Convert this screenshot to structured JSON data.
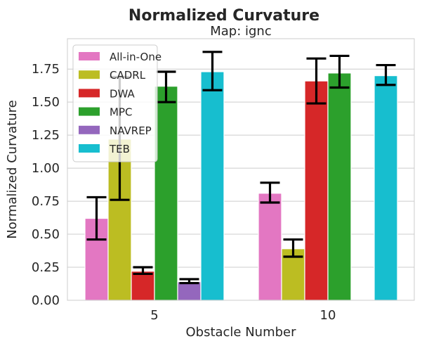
{
  "chart_data": {
    "type": "bar",
    "title": "Normalized Curvature",
    "subtitle": "Map: ignc",
    "xlabel": "Obstacle Number",
    "ylabel": "Normalized Curvature",
    "categories": [
      "5",
      "10"
    ],
    "ylim": [
      0,
      1.98
    ],
    "yticks": [
      "0.00",
      "0.25",
      "0.50",
      "0.75",
      "1.00",
      "1.25",
      "1.50",
      "1.75"
    ],
    "grid": true,
    "legend_position": "top-left",
    "series": [
      {
        "name": "All-in-One",
        "color": "#e377c2",
        "values": [
          0.62,
          0.81
        ],
        "err_low": [
          0.46,
          0.74
        ],
        "err_high": [
          0.78,
          0.89
        ]
      },
      {
        "name": "CADRL",
        "color": "#bcbd22",
        "values": [
          1.22,
          0.39
        ],
        "err_low": [
          0.76,
          0.33
        ],
        "err_high": [
          1.69,
          0.46
        ]
      },
      {
        "name": "DWA",
        "color": "#d62728",
        "values": [
          0.22,
          1.66
        ],
        "err_low": [
          0.2,
          1.49
        ],
        "err_high": [
          0.25,
          1.83
        ]
      },
      {
        "name": "MPC",
        "color": "#2ca02c",
        "values": [
          1.62,
          1.72
        ],
        "err_low": [
          1.5,
          1.61
        ],
        "err_high": [
          1.73,
          1.85
        ]
      },
      {
        "name": "NAVREP",
        "color": "#9467bd",
        "values": [
          0.14,
          null
        ],
        "err_low": [
          0.13,
          null
        ],
        "err_high": [
          0.16,
          null
        ]
      },
      {
        "name": "TEB",
        "color": "#17becf",
        "values": [
          1.73,
          1.7
        ],
        "err_low": [
          1.59,
          1.63
        ],
        "err_high": [
          1.88,
          1.78
        ]
      }
    ]
  }
}
